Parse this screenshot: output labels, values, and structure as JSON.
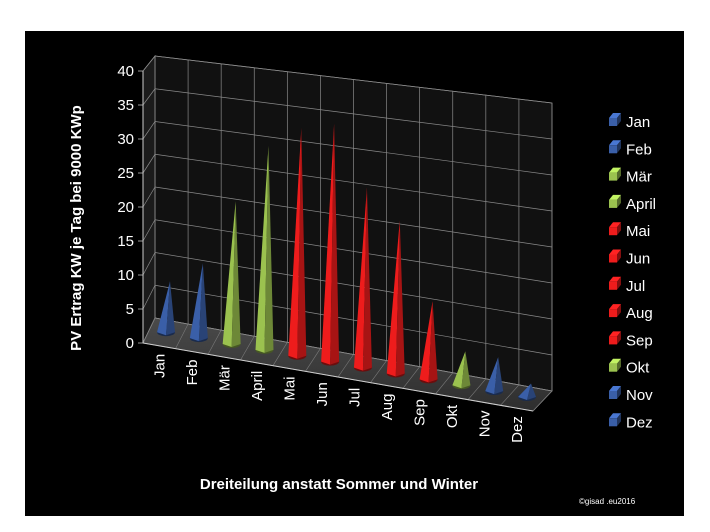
{
  "chart_data": {
    "type": "bar",
    "style": "3d-cone",
    "categories": [
      "Jan",
      "Feb",
      "Mär",
      "April",
      "Mai",
      "Jun",
      "Jul",
      "Aug",
      "Sep",
      "Okt",
      "Nov",
      "Dez"
    ],
    "values": [
      7.5,
      11,
      21,
      30,
      33.5,
      35,
      26.5,
      22.5,
      11.5,
      5,
      5,
      2
    ],
    "colors": [
      "#3a5fa8",
      "#3a5fa8",
      "#9bc24f",
      "#9bc24f",
      "#ee1c1c",
      "#ee1c1c",
      "#ee1c1c",
      "#ee1c1c",
      "#ee1c1c",
      "#9bc24f",
      "#3a5fa8",
      "#3a5fa8"
    ],
    "ylabel": "PV Ertrag KW je Tag bei 9000 KWp",
    "xlabel": "Dreiteilung anstatt Sommer und Winter",
    "ylim": [
      0,
      40
    ],
    "yticks": [
      0,
      5,
      10,
      15,
      20,
      25,
      30,
      35,
      40
    ],
    "grid": true,
    "legend": {
      "placement": "right",
      "entries": [
        "Jan",
        "Feb",
        "Mär",
        "April",
        "Mai",
        "Jun",
        "Jul",
        "Aug",
        "Sep",
        "Okt",
        "Nov",
        "Dez"
      ]
    },
    "background": "#000000",
    "annotation": "©gisad .eu2016"
  }
}
